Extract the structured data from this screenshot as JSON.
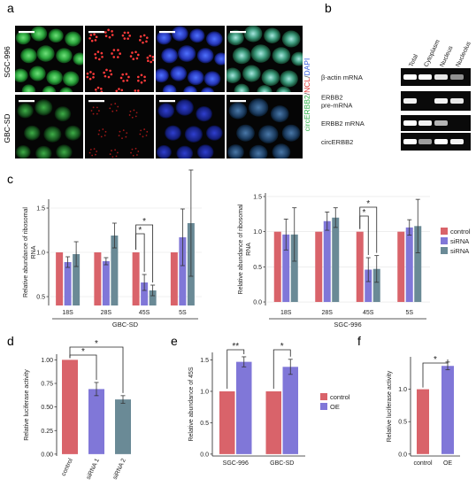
{
  "panel_labels": {
    "a": "a",
    "b": "b",
    "c": "c",
    "d": "d",
    "e": "e",
    "f": "f"
  },
  "panel_a": {
    "row_labels": [
      "SGC-996",
      "GBC-SD"
    ],
    "stain_label": {
      "part1": "circERBB2",
      "sep1": "/",
      "part2": "NCL",
      "sep2": "/",
      "part3": "DAPI"
    },
    "colors": {
      "circ": "#2fb24a",
      "ncl": "#e23232",
      "dapi": "#3a5fe0"
    }
  },
  "panel_b": {
    "columns": [
      "Total",
      "Cytoplasm",
      "Nucleus",
      "Nucleolus"
    ],
    "rows": [
      "β-actin mRNA",
      "ERBB2\npre-mRNA",
      "ERBB2 mRNA",
      "circERBB2"
    ],
    "row_label_lines": [
      [
        "β-actin mRNA"
      ],
      [
        "ERBB2",
        "pre-mRNA"
      ],
      [
        "ERBB2 mRNA"
      ],
      [
        "circERBB2"
      ]
    ]
  },
  "chart_data": [
    {
      "id": "c-left",
      "type": "bar",
      "title": "",
      "xlabel": "GBC-SD",
      "ylabel": "Relative abundance of ribosomal RNA",
      "ylabel_lines": [
        "Relative abundance of ribosomal",
        "RNA"
      ],
      "categories": [
        "18S",
        "28S",
        "45S",
        "5S"
      ],
      "ylim": [
        0.4,
        1.6
      ],
      "yticks": [
        "0.5",
        "1.0",
        "1.5"
      ],
      "series": [
        {
          "name": "control",
          "values": [
            1.0,
            1.0,
            1.0,
            1.0
          ],
          "err": [
            0,
            0,
            0,
            0
          ],
          "color": "#d9636a"
        },
        {
          "name": "siRNA",
          "values": [
            0.89,
            0.9,
            0.66,
            1.17
          ],
          "err": [
            0.06,
            0.04,
            0.09,
            0.32
          ],
          "color": "#8077d8"
        },
        {
          "name": "siRNA",
          "values": [
            0.98,
            1.19,
            0.57,
            1.33
          ],
          "err": [
            0.14,
            0.14,
            0.06,
            0.6
          ],
          "color": "#6a8a96"
        }
      ],
      "annotations": [
        "*",
        "*"
      ],
      "grid": true
    },
    {
      "id": "c-right",
      "type": "bar",
      "title": "",
      "xlabel": "SGC-996",
      "ylabel": "Relative abundance of ribosomal RNA",
      "ylabel_lines": [
        "Relative abundance of ribosomal",
        "RNA"
      ],
      "categories": [
        "18S",
        "28S",
        "45S",
        "5S"
      ],
      "ylim": [
        -0.05,
        1.55
      ],
      "yticks": [
        "0.0",
        "0.5",
        "1.0",
        "1.5"
      ],
      "series": [
        {
          "name": "control",
          "values": [
            1.0,
            1.0,
            1.0,
            1.0
          ],
          "err": [
            0,
            0,
            0,
            0
          ],
          "color": "#d9636a"
        },
        {
          "name": "siRNA",
          "values": [
            0.96,
            1.15,
            0.46,
            1.06
          ],
          "err": [
            0.22,
            0.13,
            0.17,
            0.11
          ],
          "color": "#8077d8"
        },
        {
          "name": "siRNA",
          "values": [
            0.96,
            1.2,
            0.47,
            1.08
          ],
          "err": [
            0.38,
            0.14,
            0.19,
            0.38
          ],
          "color": "#6a8a96"
        }
      ],
      "annotations": [
        "*",
        "*"
      ],
      "legend": [
        "control",
        "siRNA",
        "siRNA"
      ],
      "legend_position": "right",
      "grid": true
    },
    {
      "id": "d",
      "type": "bar",
      "title": "",
      "xlabel": "",
      "ylabel": "Relative luciferase activity",
      "categories": [
        "control",
        "siRNA 1",
        "siRNA 2"
      ],
      "values": [
        1.0,
        0.69,
        0.58
      ],
      "err": [
        0,
        0.07,
        0.04
      ],
      "colors": [
        "#d9636a",
        "#8077d8",
        "#6a8a96"
      ],
      "ylim": [
        -0.02,
        1.06
      ],
      "yticks": [
        "0.00",
        "0.25",
        "0.50",
        "0.75",
        "1.00"
      ],
      "annotations": [
        "*",
        "*"
      ],
      "grid": false
    },
    {
      "id": "e",
      "type": "bar",
      "title": "",
      "xlabel": "",
      "ylabel": "Relative abundance of 45S",
      "categories": [
        "SGC-996",
        "GBC-SD"
      ],
      "ylim": [
        -0.03,
        1.62
      ],
      "yticks": [
        "0.0",
        "0.5",
        "1.0",
        "1.5"
      ],
      "series": [
        {
          "name": "control",
          "values": [
            1.0,
            1.0
          ],
          "err": [
            0,
            0
          ],
          "color": "#d9636a"
        },
        {
          "name": "OE",
          "values": [
            1.47,
            1.39
          ],
          "err": [
            0.08,
            0.12
          ],
          "color": "#8077d8"
        }
      ],
      "annotations": [
        "**",
        "*"
      ],
      "legend": [
        "control",
        "OE"
      ],
      "legend_position": "right",
      "grid": false
    },
    {
      "id": "f",
      "type": "bar",
      "title": "",
      "xlabel": "",
      "ylabel": "Relative luciferase activity",
      "categories": [
        "control",
        "OE"
      ],
      "values": [
        1.0,
        1.36
      ],
      "err": [
        0,
        0.06
      ],
      "colors": [
        "#d9636a",
        "#8077d8"
      ],
      "ylim": [
        -0.03,
        1.5
      ],
      "yticks": [
        "0.0",
        "0.5",
        "1.0"
      ],
      "annotations": [
        "*"
      ],
      "grid": false
    }
  ]
}
